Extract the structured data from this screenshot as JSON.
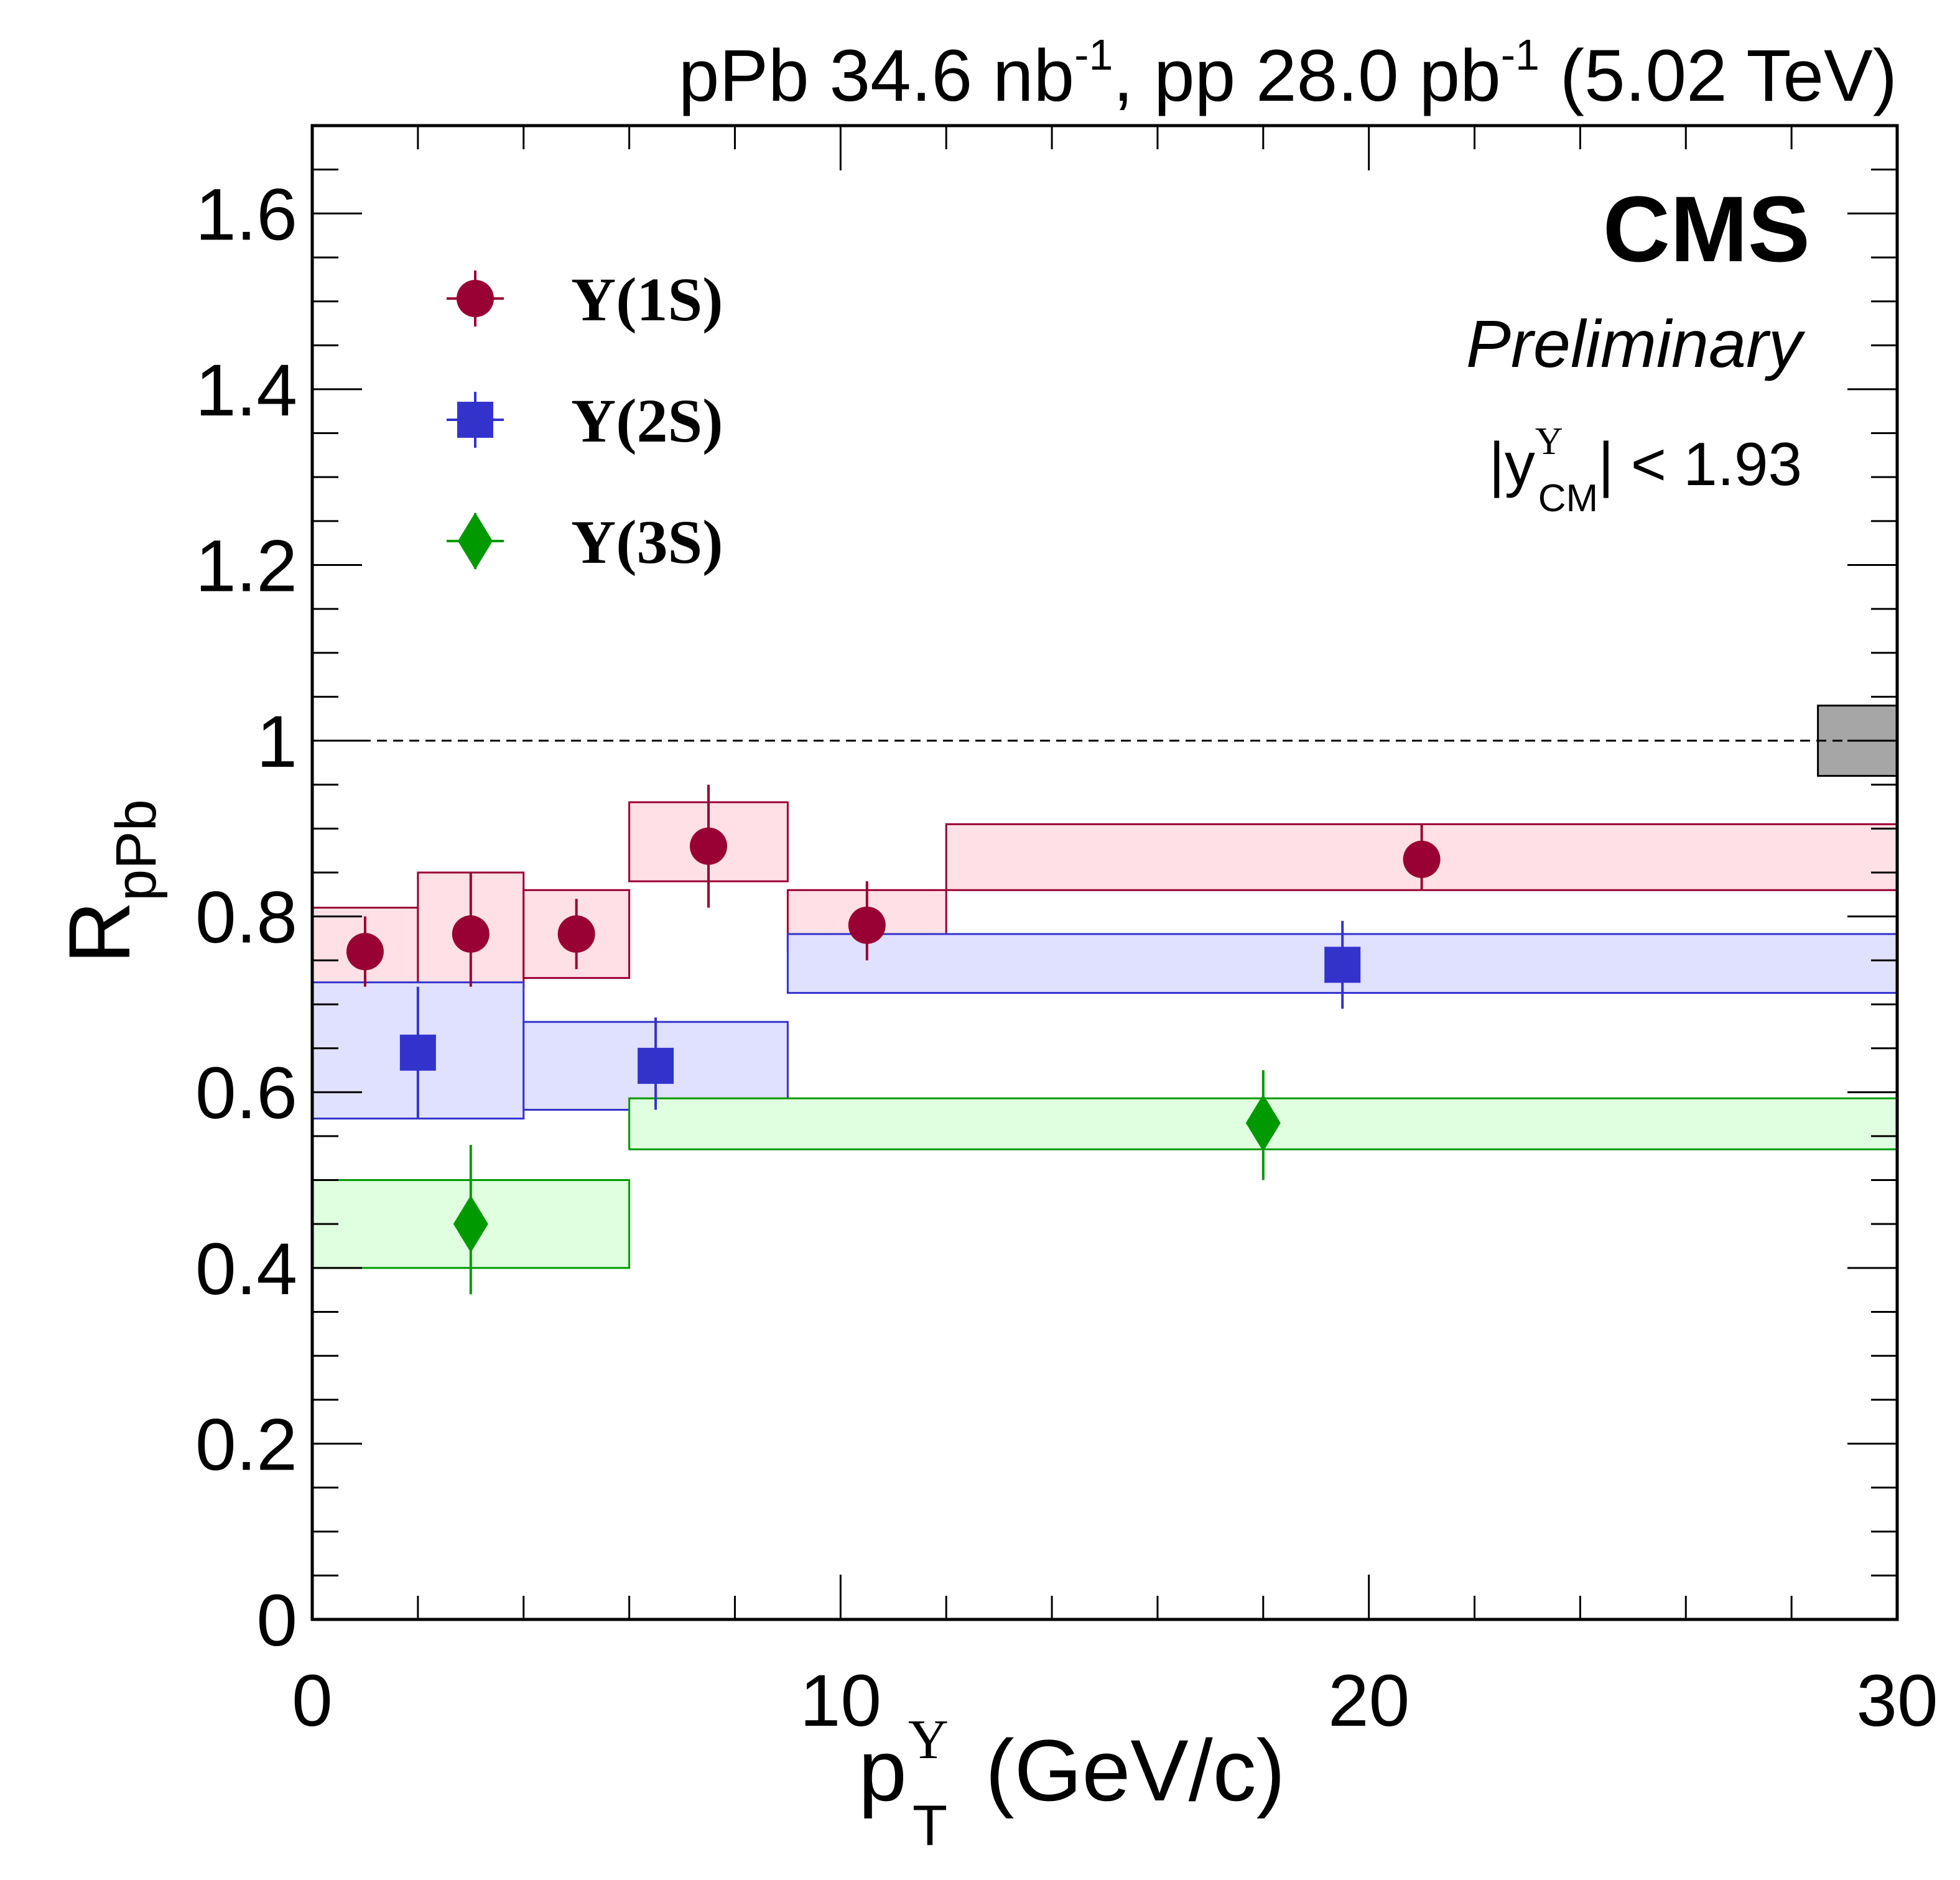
{
  "chart_data": {
    "type": "scatter",
    "header": {
      "ppb": "pPb 34.6 nb",
      "ppb_sup": "-1",
      "pp": ", pp 28.0 pb",
      "pp_sup": "-1",
      "energy": " (5.02 TeV)"
    },
    "experiment": "CMS",
    "status": "Preliminary",
    "rapidity_cut": {
      "open": "|y",
      "sup": "Υ",
      "sub": "CM",
      "close": "| < 1.93"
    },
    "ylabel": {
      "main": "R",
      "sub": "pPb"
    },
    "xlabel": {
      "main": "p",
      "sup": "Υ",
      "sub": "T",
      "unit": " (GeV/c)"
    },
    "xlim": [
      0,
      30
    ],
    "ylim": [
      0,
      1.7
    ],
    "xticks": [
      0,
      10,
      20,
      30
    ],
    "xtick_labels": [
      "0",
      "10",
      "20",
      "30"
    ],
    "yticks": [
      0,
      0.2,
      0.4,
      0.6,
      0.8,
      1.0,
      1.2,
      1.4,
      1.6
    ],
    "ytick_labels": [
      "0",
      "0.2",
      "0.4",
      "0.6",
      "0.8",
      "1",
      "1.2",
      "1.4",
      "1.6"
    ],
    "reference_line": 1.0,
    "global_uncertainty": {
      "x_range": [
        28.5,
        30
      ],
      "y_range": [
        0.96,
        1.04
      ]
    },
    "series": [
      {
        "name": "Υ(1S)",
        "legend": "Υ(1S)",
        "marker": "circle",
        "color": "#990033",
        "box_fill": "#ffe0e6",
        "box_stroke": "#990033",
        "points": [
          {
            "x": 1.0,
            "y": 0.76,
            "stat_lo": 0.72,
            "stat_hi": 0.8,
            "bin": [
              0,
              2
            ],
            "sys": [
              0.71,
              0.81
            ]
          },
          {
            "x": 3.0,
            "y": 0.78,
            "stat_lo": 0.72,
            "stat_hi": 0.85,
            "bin": [
              2,
              4
            ],
            "sys": [
              0.72,
              0.85
            ]
          },
          {
            "x": 5.0,
            "y": 0.78,
            "stat_lo": 0.74,
            "stat_hi": 0.82,
            "bin": [
              4,
              6
            ],
            "sys": [
              0.73,
              0.83
            ]
          },
          {
            "x": 7.5,
            "y": 0.88,
            "stat_lo": 0.81,
            "stat_hi": 0.95,
            "bin": [
              6,
              9
            ],
            "sys": [
              0.84,
              0.93
            ]
          },
          {
            "x": 10.5,
            "y": 0.79,
            "stat_lo": 0.75,
            "stat_hi": 0.84,
            "bin": [
              9,
              12
            ],
            "sys": [
              0.76,
              0.83
            ]
          },
          {
            "x": 21.0,
            "y": 0.865,
            "stat_lo": 0.83,
            "stat_hi": 0.905,
            "bin": [
              12,
              30
            ],
            "sys": [
              0.83,
              0.905
            ]
          }
        ]
      },
      {
        "name": "Υ(2S)",
        "legend": "Υ(2S)",
        "marker": "square",
        "color": "#3333cc",
        "box_fill": "#e0e0ff",
        "box_stroke": "#3333cc",
        "points": [
          {
            "x": 2.0,
            "y": 0.645,
            "stat_lo": 0.57,
            "stat_hi": 0.72,
            "bin": [
              0,
              4
            ],
            "sys": [
              0.57,
              0.725
            ]
          },
          {
            "x": 6.5,
            "y": 0.63,
            "stat_lo": 0.58,
            "stat_hi": 0.685,
            "bin": [
              4,
              9
            ],
            "sys": [
              0.58,
              0.68
            ]
          },
          {
            "x": 19.5,
            "y": 0.745,
            "stat_lo": 0.695,
            "stat_hi": 0.795,
            "bin": [
              9,
              30
            ],
            "sys": [
              0.713,
              0.78
            ]
          }
        ]
      },
      {
        "name": "Υ(3S)",
        "legend": "Υ(3S)",
        "marker": "diamond",
        "color": "#009900",
        "box_fill": "#e0ffe0",
        "box_stroke": "#009900",
        "points": [
          {
            "x": 3.0,
            "y": 0.45,
            "stat_lo": 0.37,
            "stat_hi": 0.54,
            "bin": [
              0,
              6
            ],
            "sys": [
              0.4,
              0.5
            ]
          },
          {
            "x": 18.0,
            "y": 0.565,
            "stat_lo": 0.5,
            "stat_hi": 0.625,
            "bin": [
              6,
              30
            ],
            "sys": [
              0.535,
              0.593
            ]
          }
        ]
      }
    ]
  }
}
